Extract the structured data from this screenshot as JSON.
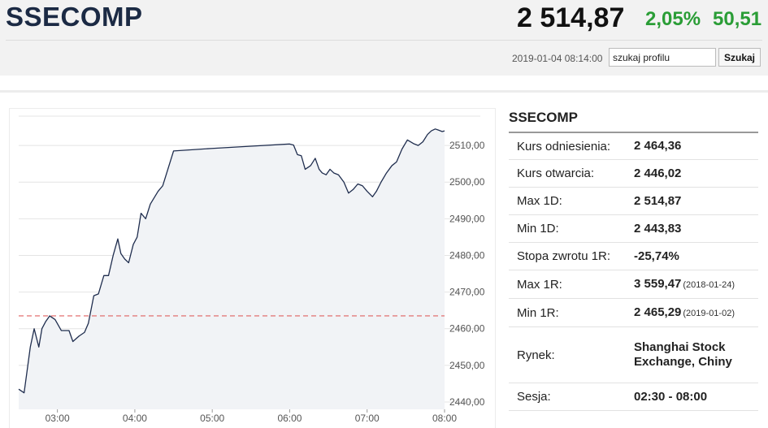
{
  "header": {
    "title": "SSECOMP",
    "price": "2 514,87",
    "change_pct": "2,05%",
    "change_abs": "50,51",
    "timestamp": "2019-01-04 08:14:00",
    "search_value": "szukaj profilu",
    "search_button": "Szukaj",
    "change_color": "#2a9d36"
  },
  "sidebar": {
    "title": "SSECOMP",
    "rows": [
      {
        "label": "Kurs odniesienia:",
        "value": "2 464,36",
        "extra": ""
      },
      {
        "label": "Kurs otwarcia:",
        "value": "2 446,02",
        "extra": ""
      },
      {
        "label": "Max 1D:",
        "value": "2 514,87",
        "extra": ""
      },
      {
        "label": "Min 1D:",
        "value": "2 443,83",
        "extra": ""
      },
      {
        "label": "Stopa zwrotu 1R:",
        "value": "-25,74%",
        "extra": ""
      },
      {
        "label": "Max 1R:",
        "value": "3 559,47",
        "extra": "(2018-01-24)"
      },
      {
        "label": "Min 1R:",
        "value": "2 465,29",
        "extra": "(2019-01-02)"
      },
      {
        "label": "Rynek:",
        "value": "Shanghai Stock Exchange, Chiny",
        "extra": ""
      },
      {
        "label": "Sesja:",
        "value": "02:30 - 08:00",
        "extra": ""
      }
    ]
  },
  "chart_data": {
    "type": "area",
    "title": "",
    "xlabel": "",
    "ylabel": "",
    "x_ticks": [
      "03:00",
      "04:00",
      "05:00",
      "06:00",
      "07:00",
      "08:00"
    ],
    "x_tick_values": [
      3,
      4,
      5,
      6,
      7,
      8
    ],
    "y_ticks": [
      "2440,00",
      "2450,00",
      "2460,00",
      "2470,00",
      "2480,00",
      "2490,00",
      "2500,00",
      "2510,00"
    ],
    "y_tick_values": [
      2440,
      2450,
      2460,
      2470,
      2480,
      2490,
      2500,
      2510
    ],
    "xlim": [
      2.5,
      8.0
    ],
    "ylim": [
      2438,
      2520
    ],
    "grid": true,
    "reference_line": {
      "value": 2463.5,
      "color": "#e06060",
      "style": "dashed"
    },
    "line_color": "#1f2d4e",
    "fill_color": "#f1f3f6",
    "series": [
      {
        "x": [
          2.5,
          2.57,
          2.65,
          2.7,
          2.76,
          2.8,
          2.85,
          2.9,
          2.97,
          3.05,
          3.1,
          3.15,
          3.2,
          3.28,
          3.35,
          3.4,
          3.47,
          3.53,
          3.6,
          3.66,
          3.72,
          3.78,
          3.82,
          3.87,
          3.92,
          3.98,
          4.03,
          4.08,
          4.14,
          4.2,
          4.3,
          4.36,
          4.5,
          5.0,
          5.5,
          6.0,
          6.05,
          6.1,
          6.15,
          6.2,
          6.27,
          6.33,
          6.38,
          6.42,
          6.47,
          6.52,
          6.57,
          6.63,
          6.7,
          6.76,
          6.82,
          6.88,
          6.94,
          7.0,
          7.07,
          7.12,
          7.18,
          7.25,
          7.32,
          7.38,
          7.45,
          7.52,
          7.6,
          7.66,
          7.72,
          7.78,
          7.83,
          7.88,
          7.92,
          7.97,
          8.0
        ],
        "y": [
          2443.5,
          2442.5,
          2455,
          2460,
          2455,
          2460,
          2462,
          2463.5,
          2462.5,
          2459.5,
          2459.5,
          2459.5,
          2456.5,
          2458,
          2459,
          2461.5,
          2469,
          2469.5,
          2474.5,
          2474.5,
          2480,
          2484.5,
          2480.5,
          2479,
          2478,
          2483,
          2485,
          2491.5,
          2490,
          2494,
          2497.5,
          2499,
          2508.5,
          2509.2,
          2509.8,
          2510.4,
          2510.1,
          2507.5,
          2507.2,
          2503.5,
          2504.5,
          2506.5,
          2503.5,
          2502.5,
          2502,
          2503.5,
          2502.5,
          2502,
          2500,
          2497,
          2498,
          2499.5,
          2499,
          2497.5,
          2496,
          2497.5,
          2500,
          2502.5,
          2504.5,
          2505.5,
          2509,
          2511.5,
          2510.5,
          2510,
          2511,
          2513,
          2514,
          2514.5,
          2514.2,
          2513.8,
          2514
        ]
      }
    ]
  }
}
